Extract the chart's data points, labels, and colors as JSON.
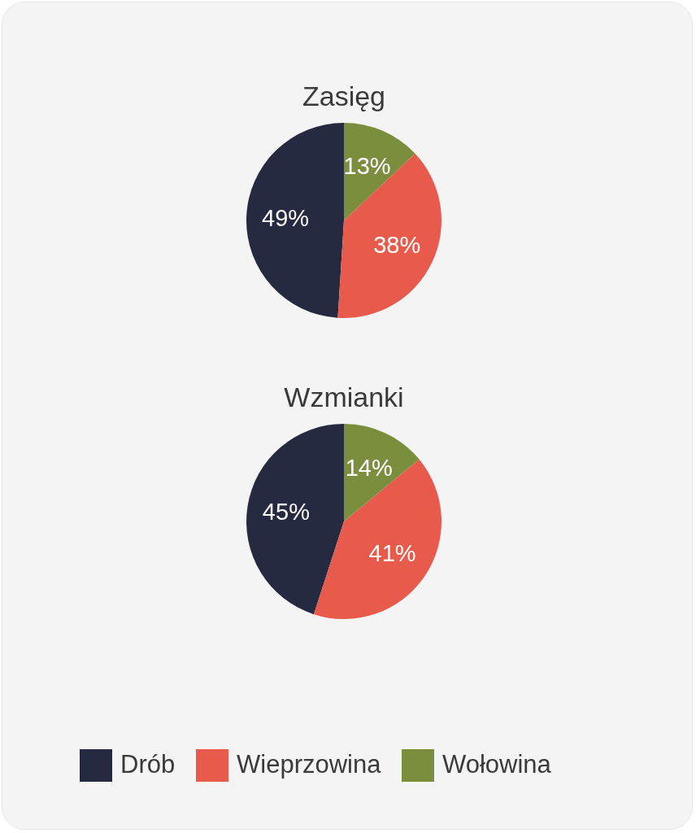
{
  "chart_data": [
    {
      "type": "pie",
      "title": "Zasięg",
      "categories": [
        null,
        null,
        null
      ],
      "values": [
        49,
        38,
        13
      ],
      "value_labels": [
        "49%",
        "38%",
        "13%"
      ],
      "colors": [
        "#252a40",
        "#e85a4c",
        "#7a8e3e"
      ]
    },
    {
      "type": "pie",
      "title": "Wzmianki",
      "categories": [
        "Drób",
        "Wieprzowina",
        "Wołowina"
      ],
      "values": [
        45,
        41,
        14
      ],
      "value_labels": [
        "45%",
        "41%",
        "14%"
      ],
      "colors": [
        "#252a40",
        "#e85a4c",
        "#7a8e3e"
      ],
      "legend": "bottom"
    }
  ]
}
